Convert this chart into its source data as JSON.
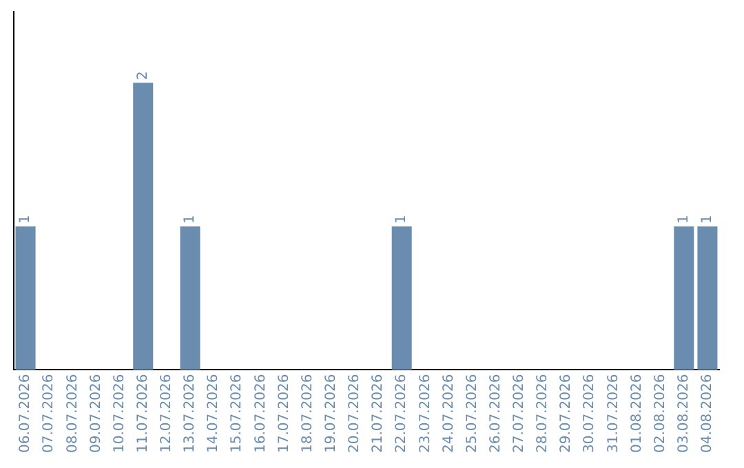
{
  "chart_data": {
    "type": "bar",
    "categories": [
      "06.07.2026",
      "07.07.2026",
      "08.07.2026",
      "09.07.2026",
      "10.07.2026",
      "11.07.2026",
      "12.07.2026",
      "13.07.2026",
      "14.07.2026",
      "15.07.2026",
      "16.07.2026",
      "17.07.2026",
      "18.07.2026",
      "19.07.2026",
      "20.07.2026",
      "21.07.2026",
      "22.07.2026",
      "23.07.2026",
      "24.07.2026",
      "25.07.2026",
      "26.07.2026",
      "27.07.2026",
      "28.07.2026",
      "29.07.2026",
      "30.07.2026",
      "31.07.2026",
      "01.08.2026",
      "02.08.2026",
      "03.08.2026",
      "04.08.2026"
    ],
    "values": [
      1,
      0,
      0,
      0,
      0,
      2,
      0,
      1,
      0,
      0,
      0,
      0,
      0,
      0,
      0,
      0,
      1,
      0,
      0,
      0,
      0,
      0,
      0,
      0,
      0,
      0,
      0,
      0,
      1,
      1
    ],
    "value_labels": [
      "1",
      null,
      null,
      null,
      null,
      "2",
      null,
      "1",
      null,
      null,
      null,
      null,
      null,
      null,
      null,
      null,
      "1",
      null,
      null,
      null,
      null,
      null,
      null,
      null,
      null,
      null,
      null,
      null,
      "1",
      "1"
    ],
    "color": "#6a8caf",
    "grid": false,
    "legend": false,
    "tick_labels": "x"
  }
}
